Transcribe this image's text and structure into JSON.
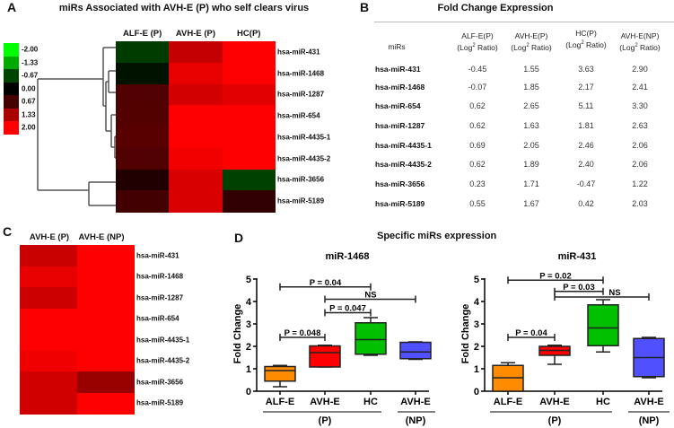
{
  "panel_labels": {
    "a": "A",
    "b": "B",
    "c": "C",
    "d": "D"
  },
  "panel_a": {
    "title": "miRs Associated with AVH-E (P) who self clears virus",
    "columns": [
      "ALF-E (P)",
      "AVH-E (P)",
      "HC(P)"
    ],
    "rows": [
      "hsa-miR-431",
      "hsa-miR-1468",
      "hsa-miR-1287",
      "hsa-miR-654",
      "hsa-miR-4435-1",
      "hsa-miR-4435-2",
      "hsa-miR-3656",
      "hsa-miR-5189"
    ],
    "cell_colors": [
      [
        "#003c00",
        "#c40000",
        "#ff0000"
      ],
      [
        "#001200",
        "#e80000",
        "#ff0000"
      ],
      [
        "#500000",
        "#d20000",
        "#e20000"
      ],
      [
        "#520000",
        "#ff0000",
        "#ff0000"
      ],
      [
        "#580000",
        "#ff0000",
        "#ff0000"
      ],
      [
        "#500000",
        "#f20000",
        "#ff0000"
      ],
      [
        "#200000",
        "#d80000",
        "#004000"
      ],
      [
        "#420000",
        "#d80000",
        "#300000"
      ]
    ],
    "legend": [
      {
        "label": "-2.00",
        "color": "#00ff00"
      },
      {
        "label": "-1.33",
        "color": "#00aa00"
      },
      {
        "label": "-0.67",
        "color": "#004400"
      },
      {
        "label": "0.00",
        "color": "#000000"
      },
      {
        "label": "0.67",
        "color": "#440000"
      },
      {
        "label": "1.33",
        "color": "#aa0000"
      },
      {
        "label": "2.00",
        "color": "#ff0000"
      }
    ]
  },
  "panel_b": {
    "title": "Fold Change Expression",
    "header_first": "miRs",
    "headers": [
      {
        "name": "ALF-E(P)",
        "unit_a": "(Log",
        "sup": "2",
        "unit_b": " Ratio)"
      },
      {
        "name": "AVH-E(P)",
        "unit_a": "(Log",
        "sup": "2",
        "unit_b": " Ratio)"
      },
      {
        "name": "HC(P)",
        "unit_a": "(Log",
        "sup": "2",
        "unit_b": " Ratio)"
      },
      {
        "name": "AVH-E(NP)",
        "unit_a": "(Log",
        "sup": "2",
        "unit_b": " Ratio)"
      }
    ],
    "rows": [
      {
        "mir": "hsa-miR-431",
        "values": [
          "-0.45",
          "1.55",
          "3.63",
          "2.90"
        ]
      },
      {
        "mir": "hsa-miR-1468",
        "values": [
          "-0.07",
          "1.85",
          "2.17",
          "2.41"
        ]
      },
      {
        "mir": "hsa-miR-654",
        "values": [
          "0.62",
          "2.65",
          "5.11",
          "3.30"
        ]
      },
      {
        "mir": "hsa-miR-1287",
        "values": [
          "0.62",
          "1.63",
          "1.81",
          "2.63"
        ]
      },
      {
        "mir": "hsa-miR-4435-1",
        "values": [
          "0.69",
          "2.05",
          "2.46",
          "2.06"
        ]
      },
      {
        "mir": "hsa-miR-4435-2",
        "values": [
          "0.62",
          "1.89",
          "2.40",
          "2.06"
        ]
      },
      {
        "mir": "hsa-miR-3656",
        "values": [
          "0.23",
          "1.71",
          "-0.47",
          "1.22"
        ]
      },
      {
        "mir": "hsa-miR-5189",
        "values": [
          "0.55",
          "1.67",
          "0.42",
          "2.03"
        ]
      }
    ]
  },
  "panel_c": {
    "columns": [
      "AVH-E (P)",
      "AVH-E (NP)"
    ],
    "rows": [
      "hsa-miR-431",
      "hsa-miR-1468",
      "hsa-miR-1287",
      "hsa-miR-654",
      "hsa-miR-4435-1",
      "hsa-miR-4435-2",
      "hsa-miR-3656",
      "hsa-miR-5189"
    ],
    "cell_colors": [
      [
        "#c80000",
        "#ff0000"
      ],
      [
        "#e80000",
        "#ff0000"
      ],
      [
        "#cc0000",
        "#ff0000"
      ],
      [
        "#ff0000",
        "#ff0000"
      ],
      [
        "#ff0000",
        "#ff0000"
      ],
      [
        "#f00000",
        "#ff0000"
      ],
      [
        "#d00000",
        "#990000"
      ],
      [
        "#d00000",
        "#ff0000"
      ]
    ]
  },
  "panel_d": {
    "title": "Specific miRs expression"
  },
  "chart_data": [
    {
      "type": "box",
      "title": "miR-1468",
      "ylabel": "Fold Change",
      "ylim": [
        0,
        5
      ],
      "yticks": [
        "0",
        "1",
        "2",
        "3",
        "4",
        "5"
      ],
      "categories": [
        "ALF-E",
        "AVH-E",
        "HC",
        "AVH-E"
      ],
      "group_labels": [
        "(P)",
        "(NP)"
      ],
      "colors": [
        "#ff8c00",
        "#ff0000",
        "#00c000",
        "#5050ff"
      ],
      "boxes": [
        {
          "min": 0.2,
          "q1": 0.45,
          "median": 0.92,
          "q3": 1.1,
          "max": 1.15
        },
        {
          "min": 1.08,
          "q1": 1.08,
          "median": 1.72,
          "q3": 2.02,
          "max": 2.05
        },
        {
          "min": 1.6,
          "q1": 1.65,
          "median": 2.3,
          "q3": 3.05,
          "max": 3.28
        },
        {
          "min": 1.42,
          "q1": 1.45,
          "median": 1.75,
          "q3": 2.18,
          "max": 2.2
        }
      ],
      "brackets": [
        {
          "from": 0,
          "to": 1,
          "y": 2.4,
          "label": "P = 0.048"
        },
        {
          "from": 1,
          "to": 2,
          "y": 3.5,
          "label": "P = 0.047"
        },
        {
          "from": 1,
          "to": 3,
          "y": 4.1,
          "label": "NS"
        },
        {
          "from": 0,
          "to": 2,
          "y": 4.65,
          "label": "P = 0.04"
        }
      ]
    },
    {
      "type": "box",
      "title": "miR-431",
      "ylabel": "Fold Change",
      "ylim": [
        0,
        5
      ],
      "yticks": [
        "0",
        "1",
        "2",
        "3",
        "4",
        "5"
      ],
      "categories": [
        "ALF-E",
        "AVH-E",
        "HC",
        "AVH-E"
      ],
      "group_labels": [
        "(P)",
        "(NP)"
      ],
      "colors": [
        "#ff8c00",
        "#ff0000",
        "#00c000",
        "#5050ff"
      ],
      "boxes": [
        {
          "min": 0,
          "q1": 0,
          "median": 0.6,
          "q3": 1.15,
          "max": 1.27
        },
        {
          "min": 1.2,
          "q1": 1.6,
          "median": 1.82,
          "q3": 2.0,
          "max": 2.05
        },
        {
          "min": 1.75,
          "q1": 2.03,
          "median": 2.82,
          "q3": 3.85,
          "max": 4.08
        },
        {
          "min": 0.6,
          "q1": 0.65,
          "median": 1.5,
          "q3": 2.35,
          "max": 2.4
        }
      ],
      "brackets": [
        {
          "from": 0,
          "to": 1,
          "y": 2.4,
          "label": "P = 0.04"
        },
        {
          "from": 1,
          "to": 3,
          "y": 4.2,
          "label": "NS"
        },
        {
          "from": 1,
          "to": 2,
          "y": 4.45,
          "label": "P = 0.03"
        },
        {
          "from": 0,
          "to": 2,
          "y": 4.95,
          "label": "P = 0.02"
        }
      ]
    }
  ]
}
